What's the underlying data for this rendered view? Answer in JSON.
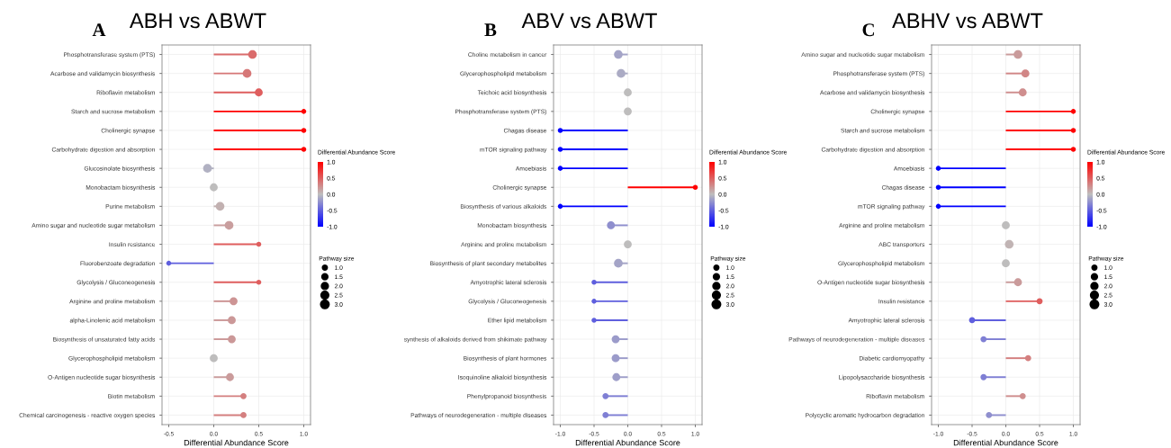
{
  "chart_data": [
    {
      "type": "lollipop",
      "title": "ABH vs ABWT",
      "annotations": [
        "A"
      ],
      "orientation": "horizontal",
      "xlabel": "Differential Abundance Score",
      "clabel": "Differential Abundance Score",
      "legend_title": "Pathway size",
      "grid": true,
      "categories": [
        "Phosphotransferase system (PTS)",
        "Acarbose and validamycin biosynthesis",
        "Riboflavin metabolism",
        "Starch and sucrose metabolism",
        "Cholinergic synapse",
        "Carbohydrate digestion and absorption",
        "Glucosinolate biosynthesis",
        "Monobactam biosynthesis",
        "Purine metabolism",
        "Amino sugar and nucleotide sugar metabolism",
        "Insulin resistance",
        "Fluorobenzoate degradation",
        "Glycolysis / Gluconeogenesis",
        "Arginine and proline metabolism",
        "alpha-Linolenic acid metabolism",
        "Biosynthesis of unsaturated fatty acids",
        "Glycerophospholipid metabolism",
        "O-Antigen nucleotide sugar biosynthesis",
        "Biotin metabolism",
        "Chemical carcinogenesis - reactive oxygen species"
      ],
      "values": [
        0.43,
        0.37,
        0.5,
        1.0,
        1.0,
        1.0,
        -0.07,
        0.0,
        0.07,
        0.17,
        0.5,
        -0.5,
        0.5,
        0.22,
        0.2,
        0.2,
        0.0,
        0.18,
        0.33,
        0.33
      ],
      "cvalues": [
        0.43,
        0.37,
        0.5,
        1.0,
        1.0,
        1.0,
        -0.07,
        0.0,
        0.07,
        0.17,
        0.5,
        -0.5,
        0.5,
        0.22,
        0.2,
        0.2,
        0.0,
        0.18,
        0.33,
        0.33
      ],
      "sizes": [
        3,
        3,
        2.5,
        1,
        1,
        1,
        3,
        2.5,
        3,
        3,
        1,
        1,
        1,
        2.5,
        2.5,
        2.5,
        2.5,
        2.5,
        1.5,
        1.5
      ],
      "size_legend": [
        {
          "value": 1,
          "label": "1.0"
        },
        {
          "value": 1.5,
          "label": "1.5"
        },
        {
          "value": 2,
          "label": "2.0"
        },
        {
          "value": 2.5,
          "label": "2.5"
        },
        {
          "value": 3,
          "label": "3.0"
        }
      ],
      "clim": [
        -1,
        1
      ],
      "cticks": [
        {
          "value": 1,
          "label": "1.0"
        },
        {
          "value": 0.5,
          "label": "0.5"
        },
        {
          "value": 0,
          "label": "0.0"
        },
        {
          "value": -0.5,
          "label": "-0.5"
        },
        {
          "value": -1,
          "label": "-1.0"
        }
      ],
      "xlim": [
        -0.575,
        1.075
      ],
      "xticks": [
        {
          "value": -0.5,
          "label": "-0.5"
        },
        {
          "value": 0,
          "label": "0.0"
        },
        {
          "value": 0.5,
          "label": "0.5"
        },
        {
          "value": 1,
          "label": "1.0"
        }
      ]
    },
    {
      "type": "lollipop",
      "title": "ABV vs ABWT",
      "annotations": [
        "B"
      ],
      "orientation": "horizontal",
      "xlabel": "Differential Abundance Score",
      "clabel": "Differential Abundance Score",
      "legend_title": "Pathway size",
      "grid": true,
      "categories": [
        "Choline metabolism in cancer",
        "Glycerophospholipid metabolism",
        "Teichoic acid biosynthesis",
        "Phosphotransferase system (PTS)",
        "Chagas disease",
        "mTOR signaling pathway",
        "Amoebiasis",
        "Cholinergic synapse",
        "Biosynthesis of various alkaloids",
        "Monobactam biosynthesis",
        "Arginine and proline metabolism",
        "Biosynthesis of plant secondary metabolites",
        "Amyotrophic lateral sclerosis",
        "Glycolysis / Gluconeogenesis",
        "Ether lipid metabolism",
        "synthesis of alkaloids derived from shikimate pathway",
        "Biosynthesis of plant hormones",
        "Isoquinoline alkaloid biosynthesis",
        "Phenylpropanoid biosynthesis",
        "Pathways of neurodegeneration - multiple diseases"
      ],
      "values": [
        -0.14,
        -0.1,
        0.0,
        0.0,
        -1.0,
        -1.0,
        -1.0,
        1.0,
        -1.0,
        -0.25,
        0.0,
        -0.14,
        -0.5,
        -0.5,
        -0.5,
        -0.18,
        -0.18,
        -0.17,
        -0.33,
        -0.33
      ],
      "cvalues": [
        -0.14,
        -0.1,
        0.0,
        0.0,
        -1.0,
        -1.0,
        -1.0,
        1.0,
        -1.0,
        -0.25,
        0.0,
        -0.14,
        -0.5,
        -0.5,
        -0.5,
        -0.18,
        -0.18,
        -0.17,
        -0.33,
        -0.33
      ],
      "sizes": [
        3,
        3,
        2.5,
        2.5,
        1,
        1,
        1,
        1,
        1,
        2.5,
        2.5,
        3,
        1,
        1,
        1,
        2.5,
        2.5,
        2.5,
        1.5,
        1.5
      ],
      "size_legend": [
        {
          "value": 1,
          "label": "1.0"
        },
        {
          "value": 1.5,
          "label": "1.5"
        },
        {
          "value": 2,
          "label": "2.0"
        },
        {
          "value": 2.5,
          "label": "2.5"
        },
        {
          "value": 3,
          "label": "3.0"
        }
      ],
      "clim": [
        -1,
        1
      ],
      "cticks": [
        {
          "value": 1,
          "label": "1.0"
        },
        {
          "value": 0.5,
          "label": "0.5"
        },
        {
          "value": 0,
          "label": "0.0"
        },
        {
          "value": -0.5,
          "label": "-0.5"
        },
        {
          "value": -1,
          "label": "-1.0"
        }
      ],
      "xlim": [
        -1.1,
        1.1
      ],
      "xticks": [
        {
          "value": -1,
          "label": "-1.0"
        },
        {
          "value": -0.5,
          "label": "-0.5"
        },
        {
          "value": 0,
          "label": "0.0"
        },
        {
          "value": 0.5,
          "label": "0.5"
        },
        {
          "value": 1,
          "label": "1.0"
        }
      ]
    },
    {
      "type": "lollipop",
      "title": "ABHV vs ABWT",
      "annotations": [
        "C"
      ],
      "orientation": "horizontal",
      "xlabel": "Differential Abundance Score",
      "clabel": "Differential Abundance Score",
      "legend_title": "Pathway size",
      "grid": true,
      "categories": [
        "Amino sugar and nucleotide sugar metabolism",
        "Phosphotransferase system (PTS)",
        "Acarbose and validamycin biosynthesis",
        "Cholinergic synapse",
        "Starch and sucrose metabolism",
        "Carbohydrate digestion and absorption",
        "Amoebiasis",
        "Chagas disease",
        "mTOR signaling pathway",
        "Arginine and proline metabolism",
        "ABC transporters",
        "Glycerophospholipid metabolism",
        "O-Antigen nucleotide sugar biosynthesis",
        "Insulin resistance",
        "Amyotrophic lateral sclerosis",
        "Pathways of neurodegeneration - multiple diseases",
        "Diabetic cardiomyopathy",
        "Lipopolysaccharide biosynthesis",
        "Riboflavin metabolism",
        "Polycyclic aromatic hydrocarbon degradation"
      ],
      "values": [
        0.18,
        0.29,
        0.25,
        1.0,
        1.0,
        1.0,
        -1.0,
        -1.0,
        -1.0,
        0.0,
        0.05,
        0.0,
        0.18,
        0.5,
        -0.5,
        -0.33,
        0.33,
        -0.33,
        0.25,
        -0.25
      ],
      "cvalues": [
        0.18,
        0.29,
        0.25,
        1.0,
        1.0,
        1.0,
        -1.0,
        -1.0,
        -1.0,
        0.0,
        0.05,
        0.0,
        0.18,
        0.5,
        -0.5,
        -0.33,
        0.33,
        -0.33,
        0.25,
        -0.25
      ],
      "sizes": [
        3,
        2.5,
        2.5,
        1,
        1,
        1,
        1,
        1,
        1,
        2.5,
        3,
        2.5,
        2.5,
        1.5,
        1.5,
        1.5,
        1.5,
        1.5,
        1.5,
        1.5
      ],
      "size_legend": [
        {
          "value": 1,
          "label": "1.0"
        },
        {
          "value": 1.5,
          "label": "1.5"
        },
        {
          "value": 2,
          "label": "2.0"
        },
        {
          "value": 2.5,
          "label": "2.5"
        },
        {
          "value": 3,
          "label": "3.0"
        }
      ],
      "clim": [
        -1,
        1
      ],
      "cticks": [
        {
          "value": 1,
          "label": "1.0"
        },
        {
          "value": 0.5,
          "label": "0.5"
        },
        {
          "value": 0,
          "label": "0.0"
        },
        {
          "value": -0.5,
          "label": "-0.5"
        },
        {
          "value": -1,
          "label": "-1.0"
        }
      ],
      "xlim": [
        -1.1,
        1.1
      ],
      "xticks": [
        {
          "value": -1,
          "label": "-1.0"
        },
        {
          "value": -0.5,
          "label": "-0.5"
        },
        {
          "value": 0,
          "label": "0.0"
        },
        {
          "value": 0.5,
          "label": "0.5"
        },
        {
          "value": 1,
          "label": "1.0"
        }
      ]
    }
  ]
}
